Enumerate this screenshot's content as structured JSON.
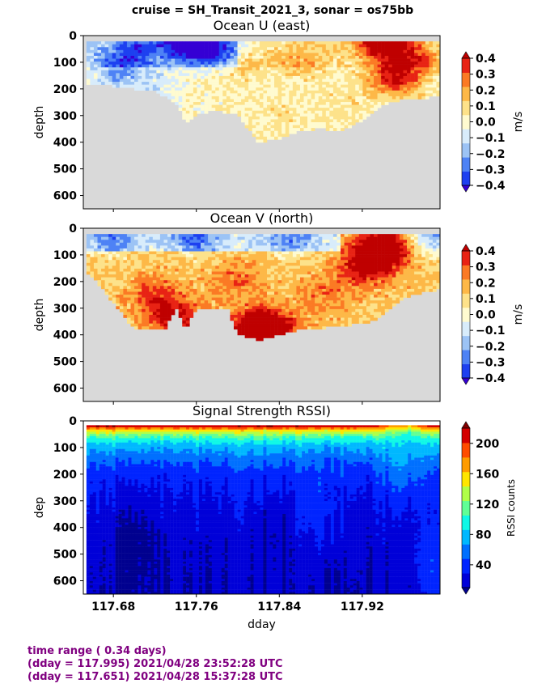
{
  "suptitle": "cruise = SH_Transit_2021_3,  sonar = os75bb",
  "footer": {
    "line1": "time range ( 0.34 days)",
    "line2": "(dday = 117.995) 2021/04/28 23:52:28 UTC",
    "line3": "(dday = 117.651) 2021/04/28 15:37:28 UTC"
  },
  "colors": {
    "nodata": "#d9d9d9",
    "diverging": [
      "#3500d4",
      "#1d40f0",
      "#4e82f5",
      "#9cc3f5",
      "#d8ecfb",
      "#fffbd0",
      "#fde28a",
      "#fdb847",
      "#fb7a24",
      "#e82314",
      "#bf0000"
    ],
    "rssi": [
      "#00008f",
      "#0000d8",
      "#0024ff",
      "#0070ff",
      "#00b8ff",
      "#10f8e6",
      "#60ff96",
      "#b0ff48",
      "#ffe600",
      "#ff9c00",
      "#ff4c00",
      "#d40000",
      "#800000"
    ]
  },
  "chart_data": [
    {
      "type": "heatmap",
      "title": "Ocean U (east)",
      "xlabel": "",
      "ylabel": "depth",
      "xlim": [
        117.651,
        117.995
      ],
      "ylim": [
        650,
        0
      ],
      "xticks": [
        117.68,
        117.76,
        117.84,
        117.92
      ],
      "yticks": [
        0,
        100,
        200,
        300,
        400,
        500,
        600
      ],
      "colorbar": {
        "label": "m/s",
        "ticks": [
          "0.4",
          "0.3",
          "0.2",
          "0.1",
          "0.0",
          "−0.1",
          "−0.2",
          "−0.3",
          "−0.4"
        ],
        "levels": [
          -0.4,
          0.4
        ]
      },
      "bottom_depth": [
        [
          117.651,
          190
        ],
        [
          117.66,
          185
        ],
        [
          117.68,
          190
        ],
        [
          117.7,
          200
        ],
        [
          117.72,
          210
        ],
        [
          117.74,
          250
        ],
        [
          117.75,
          330
        ],
        [
          117.76,
          300
        ],
        [
          117.78,
          280
        ],
        [
          117.8,
          300
        ],
        [
          117.82,
          400
        ],
        [
          117.84,
          390
        ],
        [
          117.86,
          360
        ],
        [
          117.88,
          350
        ],
        [
          117.9,
          360
        ],
        [
          117.92,
          320
        ],
        [
          117.94,
          260
        ],
        [
          117.96,
          240
        ],
        [
          117.995,
          230
        ]
      ],
      "features": [
        {
          "t": 117.75,
          "z": 20,
          "v": -0.38
        },
        {
          "t": 117.7,
          "z": 60,
          "v": -0.22
        },
        {
          "t": 117.78,
          "z": 60,
          "v": -0.25
        },
        {
          "t": 117.68,
          "z": 150,
          "v": -0.15
        },
        {
          "t": 117.72,
          "z": 200,
          "v": -0.1
        },
        {
          "t": 117.8,
          "z": 120,
          "v": 0.1
        },
        {
          "t": 117.86,
          "z": 100,
          "v": 0.12
        },
        {
          "t": 117.94,
          "z": 20,
          "v": 0.42
        },
        {
          "t": 117.95,
          "z": 160,
          "v": 0.3
        },
        {
          "t": 117.97,
          "z": 90,
          "v": 0.2
        },
        {
          "t": 117.84,
          "z": 300,
          "v": 0.05
        },
        {
          "t": 117.9,
          "z": 250,
          "v": 0.05
        }
      ]
    },
    {
      "type": "heatmap",
      "title": "Ocean V (north)",
      "xlabel": "",
      "ylabel": "depth",
      "xlim": [
        117.651,
        117.995
      ],
      "ylim": [
        650,
        0
      ],
      "xticks": [
        117.68,
        117.76,
        117.84,
        117.92
      ],
      "yticks": [
        0,
        100,
        200,
        300,
        400,
        500,
        600
      ],
      "colorbar": {
        "label": "m/s",
        "ticks": [
          "0.4",
          "0.3",
          "0.2",
          "0.1",
          "0.0",
          "−0.1",
          "−0.2",
          "−0.3",
          "−0.4"
        ],
        "levels": [
          -0.4,
          0.4
        ]
      },
      "bottom_depth": [
        [
          117.651,
          170
        ],
        [
          117.66,
          180
        ],
        [
          117.7,
          380
        ],
        [
          117.73,
          380
        ],
        [
          117.74,
          300
        ],
        [
          117.75,
          380
        ],
        [
          117.76,
          300
        ],
        [
          117.79,
          300
        ],
        [
          117.8,
          400
        ],
        [
          117.82,
          420
        ],
        [
          117.84,
          400
        ],
        [
          117.86,
          380
        ],
        [
          117.9,
          370
        ],
        [
          117.93,
          350
        ],
        [
          117.96,
          260
        ],
        [
          117.995,
          230
        ]
      ],
      "features": [
        {
          "t": 117.68,
          "z": 40,
          "v": -0.15
        },
        {
          "t": 117.76,
          "z": 30,
          "v": -0.2
        },
        {
          "t": 117.85,
          "z": 40,
          "v": -0.15
        },
        {
          "t": 117.99,
          "z": 30,
          "v": -0.3
        },
        {
          "t": 117.72,
          "z": 250,
          "v": 0.15
        },
        {
          "t": 117.74,
          "z": 340,
          "v": 0.25
        },
        {
          "t": 117.82,
          "z": 370,
          "v": 0.3
        },
        {
          "t": 117.83,
          "z": 400,
          "v": 0.38
        },
        {
          "t": 117.94,
          "z": 80,
          "v": 0.42
        },
        {
          "t": 117.92,
          "z": 150,
          "v": 0.22
        },
        {
          "t": 117.8,
          "z": 200,
          "v": 0.12
        },
        {
          "t": 117.88,
          "z": 250,
          "v": 0.1
        }
      ]
    },
    {
      "type": "heatmap",
      "title": "Signal Strength RSSI)",
      "xlabel": "dday",
      "ylabel": "dep",
      "xlim": [
        117.651,
        117.995
      ],
      "ylim": [
        650,
        0
      ],
      "xticks": [
        117.68,
        117.76,
        117.84,
        117.92
      ],
      "xticklabels": [
        "117.68",
        "117.76",
        "117.84",
        "117.92"
      ],
      "yticks": [
        0,
        100,
        200,
        300,
        400,
        500,
        600
      ],
      "colorbar": {
        "label": "RSSI counts",
        "ticks": [
          "200",
          "160",
          "120",
          "80",
          "40"
        ],
        "levels": [
          10,
          220
        ]
      },
      "profile": [
        [
          0,
          220
        ],
        [
          20,
          200
        ],
        [
          35,
          150
        ],
        [
          60,
          110
        ],
        [
          90,
          85
        ],
        [
          140,
          65
        ],
        [
          200,
          50
        ],
        [
          300,
          40
        ],
        [
          450,
          33
        ],
        [
          650,
          28
        ]
      ],
      "features": [
        {
          "t": 117.7,
          "z": 450,
          "v": 10
        },
        {
          "t": 117.835,
          "z": 450,
          "v": 18
        },
        {
          "t": 117.88,
          "z": 320,
          "v": 60
        },
        {
          "t": 117.96,
          "z": 120,
          "v": 90
        },
        {
          "t": 117.99,
          "z": 550,
          "v": 70
        }
      ]
    }
  ]
}
